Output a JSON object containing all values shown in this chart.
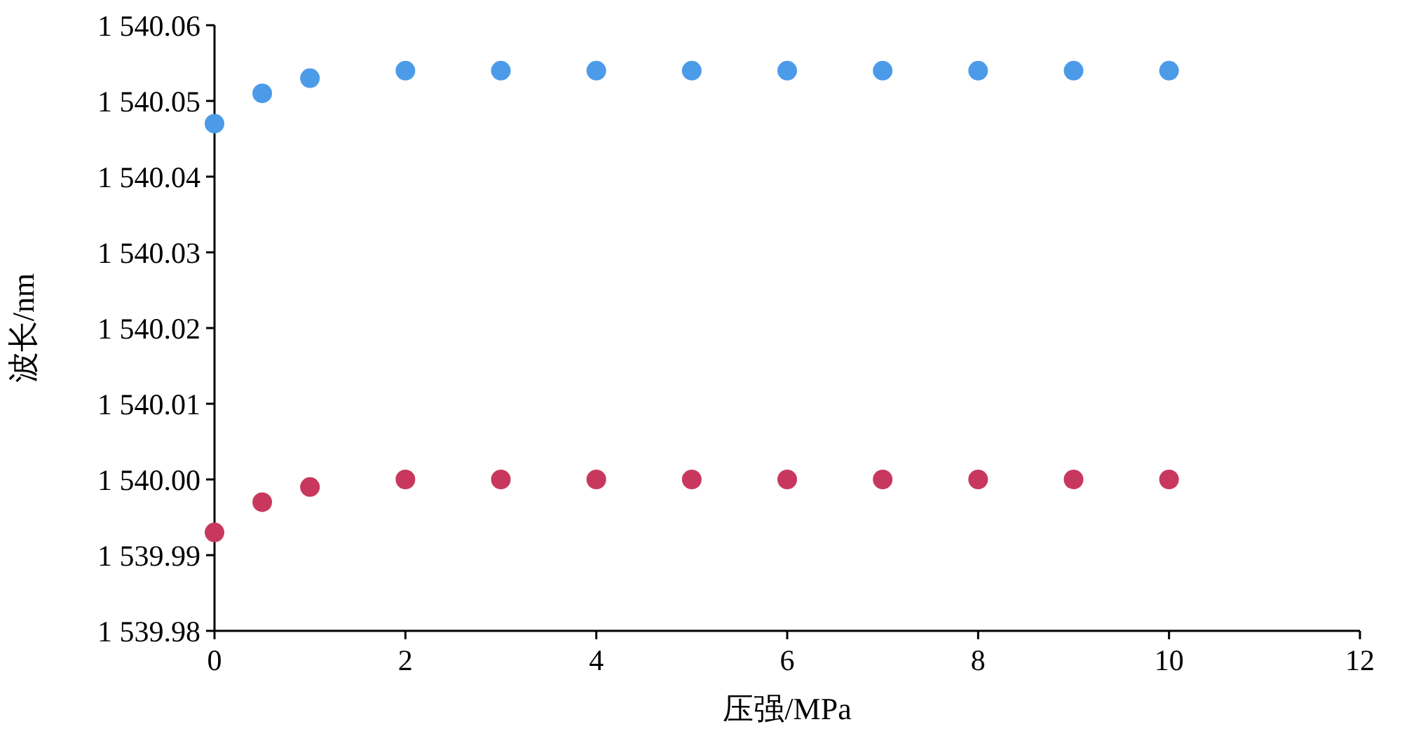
{
  "chart_data": {
    "type": "scatter",
    "xlabel": "压强/MPa",
    "ylabel": "波长/nm",
    "marker": "circle",
    "grid": false,
    "xlim": [
      0,
      12
    ],
    "xticks": [
      0,
      2,
      4,
      6,
      8,
      10,
      12
    ],
    "ylim": [
      1539.98,
      1540.06
    ],
    "yticks": [
      {
        "value": 1539.98,
        "label": "1 539.98"
      },
      {
        "value": 1539.99,
        "label": "1 539.99"
      },
      {
        "value": 1540.0,
        "label": "1 540.00"
      },
      {
        "value": 1540.01,
        "label": "1 540.01"
      },
      {
        "value": 1540.02,
        "label": "1 540.02"
      },
      {
        "value": 1540.03,
        "label": "1 540.03"
      },
      {
        "value": 1540.04,
        "label": "1 540.04"
      },
      {
        "value": 1540.05,
        "label": "1 540.05"
      },
      {
        "value": 1540.06,
        "label": "1 540.06"
      }
    ],
    "x": [
      0,
      0.5,
      1,
      2,
      3,
      4,
      5,
      6,
      7,
      8,
      9,
      10
    ],
    "series": [
      {
        "color": "#4c9be8",
        "values": [
          1540.047,
          1540.051,
          1540.053,
          1540.054,
          1540.054,
          1540.054,
          1540.054,
          1540.054,
          1540.054,
          1540.054,
          1540.054,
          1540.054
        ]
      },
      {
        "color": "#c8385e",
        "values": [
          1539.993,
          1539.997,
          1539.999,
          1540.0,
          1540.0,
          1540.0,
          1540.0,
          1540.0,
          1540.0,
          1540.0,
          1540.0,
          1540.0
        ]
      }
    ]
  }
}
